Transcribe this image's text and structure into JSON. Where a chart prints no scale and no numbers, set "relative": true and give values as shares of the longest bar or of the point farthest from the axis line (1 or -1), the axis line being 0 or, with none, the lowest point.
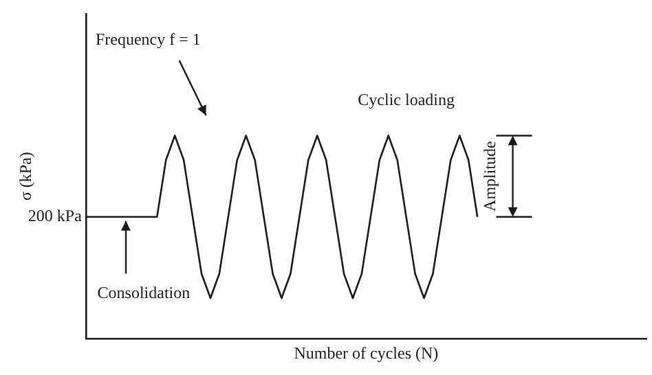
{
  "chart_data": {
    "type": "line",
    "relative": true,
    "xlabel": "Number of cycles (N)",
    "ylabel": "σ (kPa)",
    "color": "#1a1a1a",
    "marker": "none",
    "line_style": "solid",
    "grid": false,
    "legend": false,
    "categories": [
      null,
      null,
      null,
      null,
      null,
      null,
      null,
      null,
      null,
      null,
      null,
      null,
      null,
      null,
      null,
      null,
      null,
      null,
      null,
      null,
      null,
      null,
      null,
      null,
      null,
      null,
      null,
      null,
      null,
      null,
      null,
      null,
      null,
      null,
      null,
      null,
      null,
      null,
      null,
      null,
      null,
      null,
      null,
      null,
      null,
      null,
      null,
      null,
      null,
      null,
      null,
      null,
      null,
      null,
      null,
      null,
      null,
      null,
      null,
      null,
      null,
      null,
      null,
      null
    ],
    "values": [
      0.6,
      0.6,
      0.6,
      0.6,
      0.6,
      0.6,
      0.6,
      0.6,
      0.6,
      0.88,
      1,
      0.88,
      0.6,
      0.32,
      0.2,
      0.32,
      0.6,
      0.88,
      1,
      0.88,
      0.6,
      0.32,
      0.2,
      0.32,
      0.6,
      0.88,
      1,
      0.88,
      0.6,
      0.32,
      0.2,
      0.32,
      0.6,
      0.88,
      1,
      0.88,
      0.6,
      0.32,
      0.2,
      0.32,
      0.6,
      0.88,
      1,
      0.88,
      0.6,
      null,
      null,
      null,
      null,
      null,
      null,
      null,
      null,
      null,
      null,
      null,
      null,
      null,
      null,
      null,
      null,
      null,
      null,
      null
    ],
    "annotations": [
      "200 kPa",
      "Frequency f = 1",
      "Cyclic loading",
      "Amplitude",
      "Consolidation"
    ]
  }
}
